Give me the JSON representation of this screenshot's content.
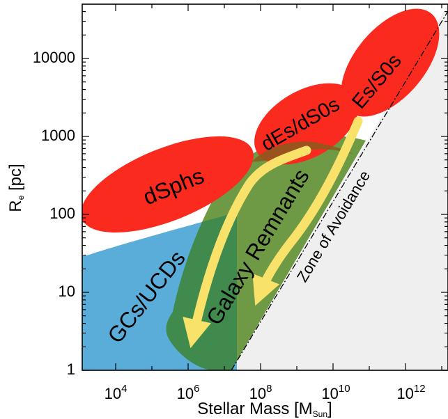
{
  "x_axis": {
    "label": "Stellar Mass [M",
    "label_sub": "Sun",
    "label_end": "]",
    "tick_base": "10",
    "ticks": [
      "4",
      "6",
      "8",
      "10",
      "12"
    ]
  },
  "y_axis": {
    "label": "R",
    "label_sub": "e",
    "label_end": " [pc]",
    "ticks": [
      "1",
      "10",
      "100",
      "1000",
      "10000"
    ]
  },
  "regions": {
    "dsphs": "dSphs",
    "des": "dEs/dS0s",
    "es": "Es/S0s",
    "gcs": "GCs/UCDs",
    "remnants": "Galaxy Remnants",
    "avoidance": "Zone of Avoidance"
  },
  "colors": {
    "red": "#fa2a1e",
    "blue": "#5aadd9",
    "green": "#6f9a45",
    "overlap": "#3f8a4c",
    "arrow": "#f9e269",
    "avoid": "#efefef"
  }
}
